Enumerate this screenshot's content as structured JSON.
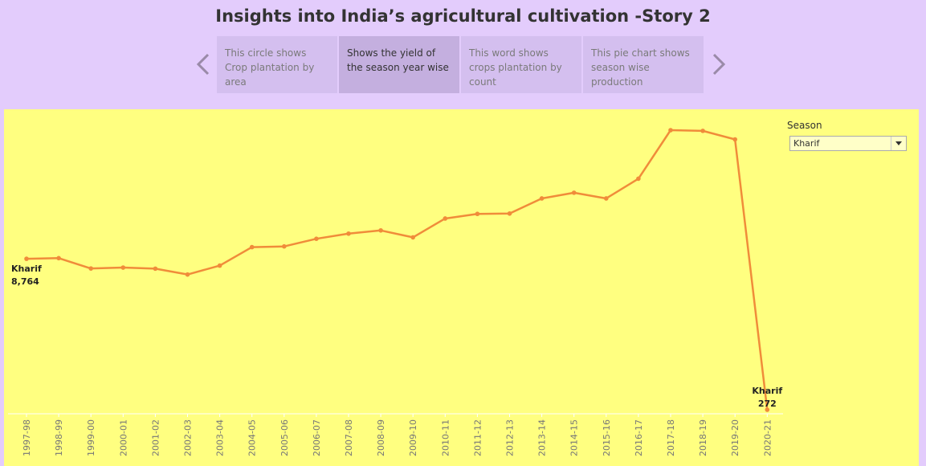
{
  "story": {
    "title": "Insights into India’s agricultural cultivation -Story 2",
    "points": [
      {
        "label": "This circle shows Crop plantation by area",
        "active": false
      },
      {
        "label": "Shows the yield of the season year wise",
        "active": true
      },
      {
        "label": "This word shows crops plantation by count",
        "active": false
      },
      {
        "label": "This pie chart shows season wise production",
        "active": false
      }
    ],
    "prev_icon": "chevron-left-icon",
    "next_icon": "chevron-right-icon"
  },
  "filter": {
    "label": "Season",
    "value": "Kharif",
    "icon": "caret-down-icon"
  },
  "colors": {
    "background": "#e3ccfc",
    "dashboard": "#ffff80",
    "line": "#f08c3a",
    "active_tab": "#c4afdf",
    "tab": "#d4bfef"
  },
  "chart_data": {
    "type": "line",
    "title": "",
    "xlabel": "",
    "ylabel": "",
    "categories": [
      "1997-98",
      "1998-99",
      "1999-00",
      "2000-01",
      "2001-02",
      "2002-03",
      "2003-04",
      "2004-05",
      "2005-06",
      "2006-07",
      "2007-08",
      "2008-09",
      "2009-10",
      "2010-11",
      "2011-12",
      "2012-13",
      "2013-14",
      "2014-15",
      "2015-16",
      "2016-17",
      "2017-18",
      "2018-19",
      "2019-20",
      "2020-21"
    ],
    "series": [
      {
        "name": "Kharif",
        "values": [
          8764,
          8800,
          8220,
          8270,
          8210,
          7880,
          8380,
          9420,
          9460,
          9890,
          10180,
          10360,
          9970,
          11030,
          11290,
          11310,
          12160,
          12480,
          12160,
          13270,
          16000,
          15960,
          15480,
          272
        ]
      }
    ],
    "ylim": [
      272,
      16000
    ],
    "y_axis_shown": false,
    "grid": false,
    "labels": [
      {
        "series": "Kharif",
        "text": "8,764",
        "index": 0
      },
      {
        "series": "Kharif",
        "text": "272",
        "index": 23
      }
    ]
  }
}
